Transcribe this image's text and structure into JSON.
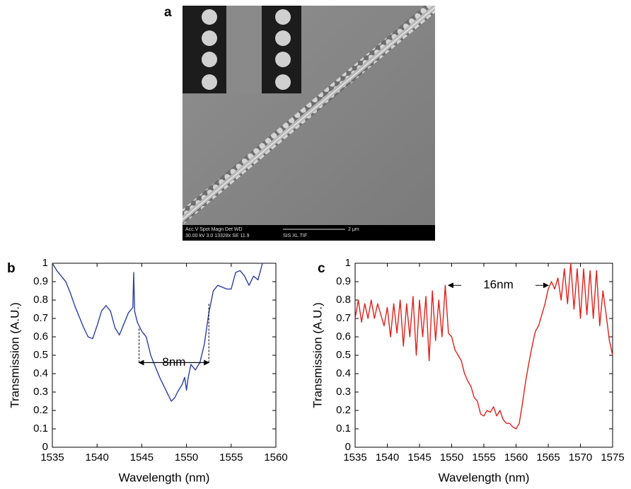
{
  "panel_a": {
    "label": "a",
    "sem_info": [
      "Acc.V  Spot  Magn    Det  WD",
      "30.00 kV 3.0  13328x  SE  11.9",
      "SIS XL.TIF"
    ],
    "scale_bar": "2 μm"
  },
  "chart_data": [
    {
      "type": "line",
      "label": "b",
      "xlabel": "Wavelength (nm)",
      "ylabel": "Transmission (A.U.)",
      "color": "#2b3fa6",
      "xlim": [
        1535,
        1560
      ],
      "xticks": [
        1535,
        1540,
        1545,
        1550,
        1555,
        1560
      ],
      "ylim": [
        0,
        1
      ],
      "yticks": [
        0,
        0.1,
        0.2,
        0.3,
        0.4,
        0.5,
        0.6,
        0.7,
        0.8,
        0.9,
        1
      ],
      "x": [
        1535,
        1535.5,
        1536,
        1536.5,
        1537,
        1537.5,
        1538,
        1538.5,
        1539,
        1539.5,
        1540,
        1540.5,
        1541,
        1541.5,
        1542,
        1542.5,
        1543,
        1543.5,
        1544,
        1544.1,
        1544.2,
        1544.5,
        1545,
        1545.5,
        1546,
        1546.5,
        1547,
        1547.5,
        1548,
        1548.3,
        1548.7,
        1549,
        1549.5,
        1549.8,
        1550,
        1550.2,
        1550.5,
        1551,
        1551.5,
        1552,
        1552.5,
        1553,
        1553.5,
        1554,
        1554.5,
        1555,
        1555.5,
        1556,
        1556.5,
        1557,
        1557.5,
        1558,
        1558.5
      ],
      "values": [
        1.0,
        0.96,
        0.93,
        0.9,
        0.84,
        0.77,
        0.71,
        0.65,
        0.6,
        0.59,
        0.66,
        0.74,
        0.77,
        0.74,
        0.65,
        0.61,
        0.67,
        0.73,
        0.76,
        0.95,
        0.74,
        0.68,
        0.63,
        0.6,
        0.5,
        0.44,
        0.38,
        0.33,
        0.28,
        0.25,
        0.27,
        0.3,
        0.34,
        0.38,
        0.31,
        0.38,
        0.45,
        0.42,
        0.46,
        0.56,
        0.73,
        0.85,
        0.88,
        0.87,
        0.86,
        0.86,
        0.95,
        0.96,
        0.93,
        0.88,
        0.93,
        0.91,
        1.0
      ],
      "annotation": {
        "text": "8nm",
        "x": [
          1544.7,
          1552.5
        ],
        "y": 0.46,
        "ends": [
          0.65,
          0.78
        ]
      }
    },
    {
      "type": "line",
      "label": "c",
      "xlabel": "Wavelength (nm)",
      "ylabel": "Transmission (A.U.)",
      "color": "#e0201b",
      "xlim": [
        1535,
        1575
      ],
      "xticks": [
        1535,
        1540,
        1545,
        1550,
        1555,
        1560,
        1565,
        1570,
        1575
      ],
      "ylim": [
        0,
        1
      ],
      "yticks": [
        0,
        0.1,
        0.2,
        0.3,
        0.4,
        0.5,
        0.6,
        0.7,
        0.8,
        0.9,
        1
      ],
      "x": [
        1535,
        1535.5,
        1536,
        1536.5,
        1537,
        1537.5,
        1538,
        1538.5,
        1539,
        1539.5,
        1540,
        1540.5,
        1541,
        1541.5,
        1542,
        1542.5,
        1543,
        1543.5,
        1544,
        1544.5,
        1545,
        1545.5,
        1546,
        1546.5,
        1547,
        1547.5,
        1548,
        1548.5,
        1549,
        1549.5,
        1550,
        1550.5,
        1551,
        1551.5,
        1552,
        1552.5,
        1553,
        1553.5,
        1554,
        1554.5,
        1555,
        1555.5,
        1556,
        1556.5,
        1557,
        1557.5,
        1558,
        1558.5,
        1559,
        1559.5,
        1560,
        1560.5,
        1561,
        1561.5,
        1562,
        1562.5,
        1563,
        1563.5,
        1564,
        1564.5,
        1565,
        1565.5,
        1566,
        1566.5,
        1567,
        1567.5,
        1568,
        1568.5,
        1569,
        1569.5,
        1570,
        1570.5,
        1571,
        1571.5,
        1572,
        1572.5,
        1573,
        1573.5,
        1574,
        1574.5,
        1575
      ],
      "values": [
        0.7,
        0.8,
        0.68,
        0.78,
        0.7,
        0.8,
        0.7,
        0.78,
        0.72,
        0.66,
        0.76,
        0.6,
        0.78,
        0.62,
        0.8,
        0.55,
        0.78,
        0.6,
        0.82,
        0.5,
        0.8,
        0.6,
        0.82,
        0.47,
        0.85,
        0.58,
        0.8,
        0.6,
        0.88,
        0.62,
        0.6,
        0.53,
        0.5,
        0.47,
        0.4,
        0.36,
        0.33,
        0.27,
        0.25,
        0.18,
        0.17,
        0.2,
        0.19,
        0.22,
        0.17,
        0.2,
        0.15,
        0.13,
        0.13,
        0.11,
        0.1,
        0.13,
        0.24,
        0.36,
        0.46,
        0.55,
        0.63,
        0.66,
        0.72,
        0.78,
        0.86,
        0.9,
        0.86,
        0.92,
        0.8,
        0.97,
        0.78,
        1.0,
        0.75,
        0.97,
        0.7,
        0.97,
        0.72,
        0.96,
        0.7,
        0.96,
        0.66,
        0.85,
        0.72,
        0.58,
        0.5
      ],
      "annotation": {
        "text": "16nm",
        "x": [
          1549.5,
          1565
        ],
        "y": 0.88
      }
    }
  ]
}
